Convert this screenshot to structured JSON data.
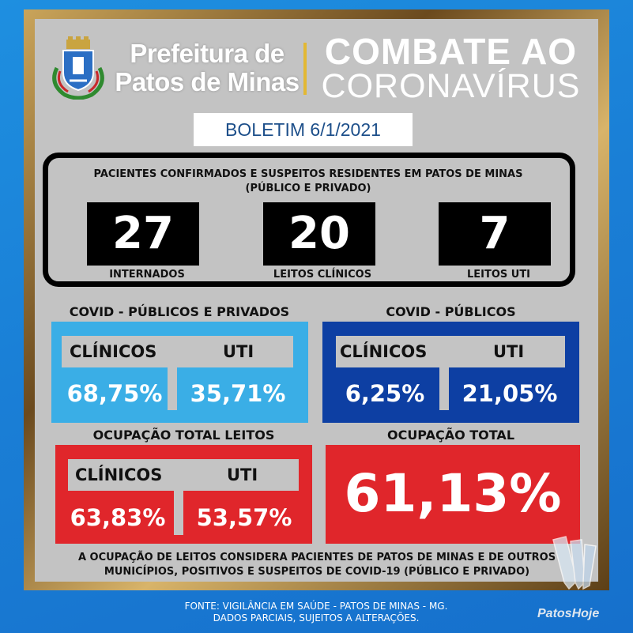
{
  "header": {
    "prefeitura_line1": "Prefeitura de",
    "prefeitura_line2": "Patos de Minas",
    "combate": "COMBATE AO",
    "coronavirus": "CORONAVÍRUS"
  },
  "boletim": "BOLETIM 6/1/2021",
  "patients": {
    "title_line1": "PACIENTES CONFIRMADOS E SUSPEITOS RESIDENTES EM PATOS DE MINAS",
    "title_line2": "(PÚBLICO E PRIVADO)",
    "items": [
      {
        "value": "27",
        "label": "INTERNADOS"
      },
      {
        "value": "20",
        "label": "LEITOS CLÍNICOS"
      },
      {
        "value": "7",
        "label": "LEITOS UTI"
      }
    ]
  },
  "covid_publicos_privados": {
    "title": "COVID - PÚBLICOS E PRIVADOS",
    "clinicos_label": "CLÍNICOS",
    "uti_label": "UTI",
    "clinicos_value": "68,75%",
    "uti_value": "35,71%"
  },
  "covid_publicos": {
    "title": "COVID - PÚBLICOS",
    "clinicos_label": "CLÍNICOS",
    "uti_label": "UTI",
    "clinicos_value": "6,25%",
    "uti_value": "21,05%"
  },
  "ocupacao_leitos": {
    "title": "OCUPAÇÃO TOTAL LEITOS",
    "clinicos_label": "CLÍNICOS",
    "uti_label": "UTI",
    "clinicos_value": "63,83%",
    "uti_value": "53,57%"
  },
  "ocupacao_total": {
    "title": "OCUPAÇÃO TOTAL",
    "value": "61,13%"
  },
  "footnote": {
    "line1": "A OCUPAÇÃO DE LEITOS CONSIDERA PACIENTES DE PATOS DE MINAS E DE OUTROS",
    "line2": "MUNICÍPIOS, POSITIVOS E SUSPEITOS DE COVID-19 (PÚBLICO E PRIVADO)"
  },
  "fonte": {
    "line1": "FONTE: VIGILÂNCIA EM SAÚDE - PATOS DE MINAS - MG.",
    "line2": "DADOS PARCIAIS, SUJEITOS A ALTERAÇÕES."
  },
  "brand": "PatosHoje",
  "colors": {
    "light_blue": "#3aaee6",
    "dark_blue": "#0d3fa3",
    "red": "#e0262b",
    "gray_tab": "#c4c4c4",
    "gold": "#e3b833"
  }
}
